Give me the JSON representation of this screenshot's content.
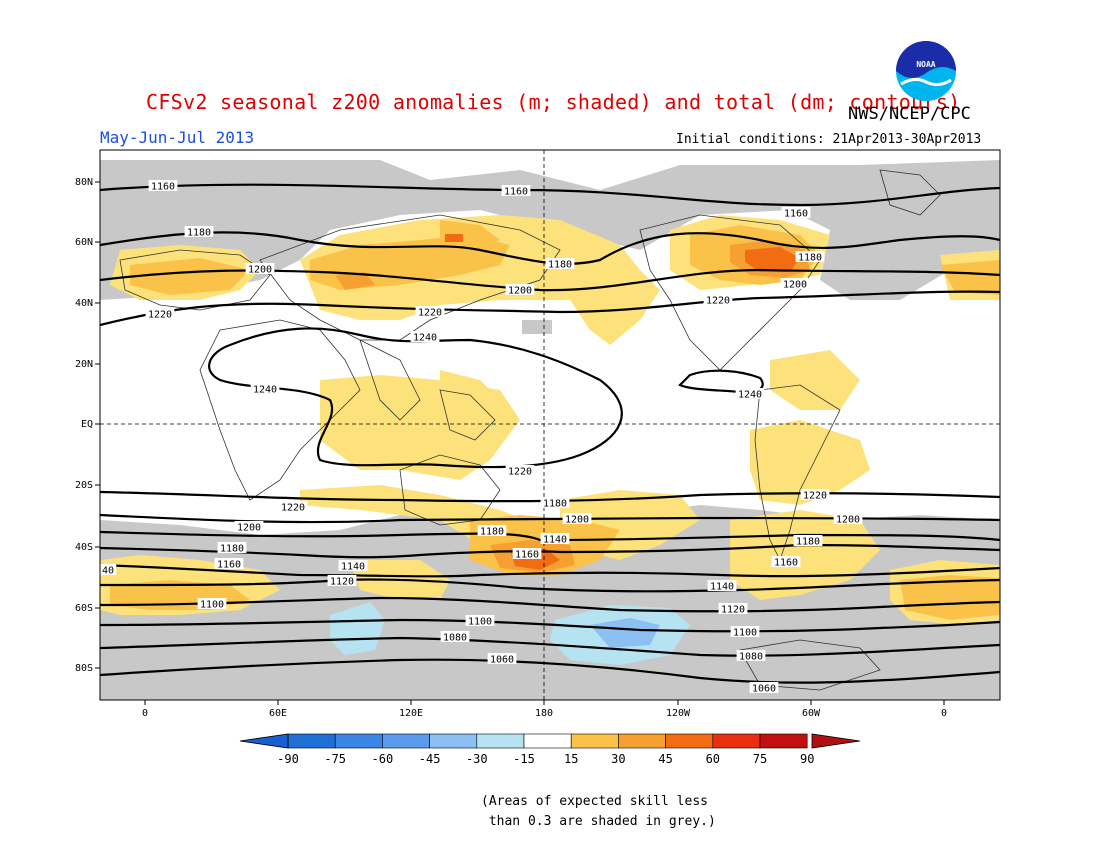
{
  "header": {
    "title": "CFSv2 seasonal z200 anomalies (m; shaded) and total (dm; contours)",
    "agency": "NWS/NCEP/CPC",
    "logo_text": "NOAA",
    "season": "May-Jun-Jul 2013",
    "initial_conditions": "Initial conditions: 21Apr2013-30Apr2013"
  },
  "map": {
    "lat_labels": [
      "80N",
      "60N",
      "40N",
      "20N",
      "EQ",
      "20S",
      "40S",
      "60S",
      "80S"
    ],
    "lon_labels": [
      "0",
      "60E",
      "120E",
      "180",
      "120W",
      "60W",
      "0"
    ],
    "contour_labels": [
      {
        "text": "1160"
      },
      {
        "text": "1160"
      },
      {
        "text": "1160"
      },
      {
        "text": "1180"
      },
      {
        "text": "1180"
      },
      {
        "text": "1180"
      },
      {
        "text": "1200"
      },
      {
        "text": "1200"
      },
      {
        "text": "1200"
      },
      {
        "text": "1220"
      },
      {
        "text": "1220"
      },
      {
        "text": "1220"
      },
      {
        "text": "1240"
      },
      {
        "text": "1240"
      },
      {
        "text": "1240"
      },
      {
        "text": "1220"
      },
      {
        "text": "1220"
      },
      {
        "text": "1220"
      },
      {
        "text": "1200"
      },
      {
        "text": "1200"
      },
      {
        "text": "1200"
      },
      {
        "text": "1180"
      },
      {
        "text": "1180"
      },
      {
        "text": "1180"
      },
      {
        "text": "1180"
      },
      {
        "text": "1160"
      },
      {
        "text": "1160"
      },
      {
        "text": "1160"
      },
      {
        "text": "1140"
      },
      {
        "text": "1140"
      },
      {
        "text": "1140"
      },
      {
        "text": "1120"
      },
      {
        "text": "1120"
      },
      {
        "text": "1100"
      },
      {
        "text": "1100"
      },
      {
        "text": "1100"
      },
      {
        "text": "1080"
      },
      {
        "text": "1080"
      },
      {
        "text": "1060"
      },
      {
        "text": "1060"
      },
      {
        "text": "40"
      }
    ]
  },
  "colorbar": {
    "ticks": [
      "-90",
      "-75",
      "-60",
      "-45",
      "-30",
      "-15",
      "15",
      "30",
      "45",
      "60",
      "75",
      "90"
    ],
    "colors": [
      "#1e6fd6",
      "#3a86e6",
      "#5b9bee",
      "#8cc0f2",
      "#b6e3f2",
      "#ffffff",
      "#fde27c",
      "#fbc24a",
      "#f5a030",
      "#f26c14",
      "#e83010",
      "#c01010"
    ],
    "end_colors": {
      "low": "#1a5fd0",
      "high": "#b01010"
    }
  },
  "footnote": "(Areas of expected skill less\n than 0.3 are shaded in grey.)",
  "colors": {
    "grey": "#c8c8c8",
    "title": "#e00000",
    "season": "#1a4fe0"
  }
}
